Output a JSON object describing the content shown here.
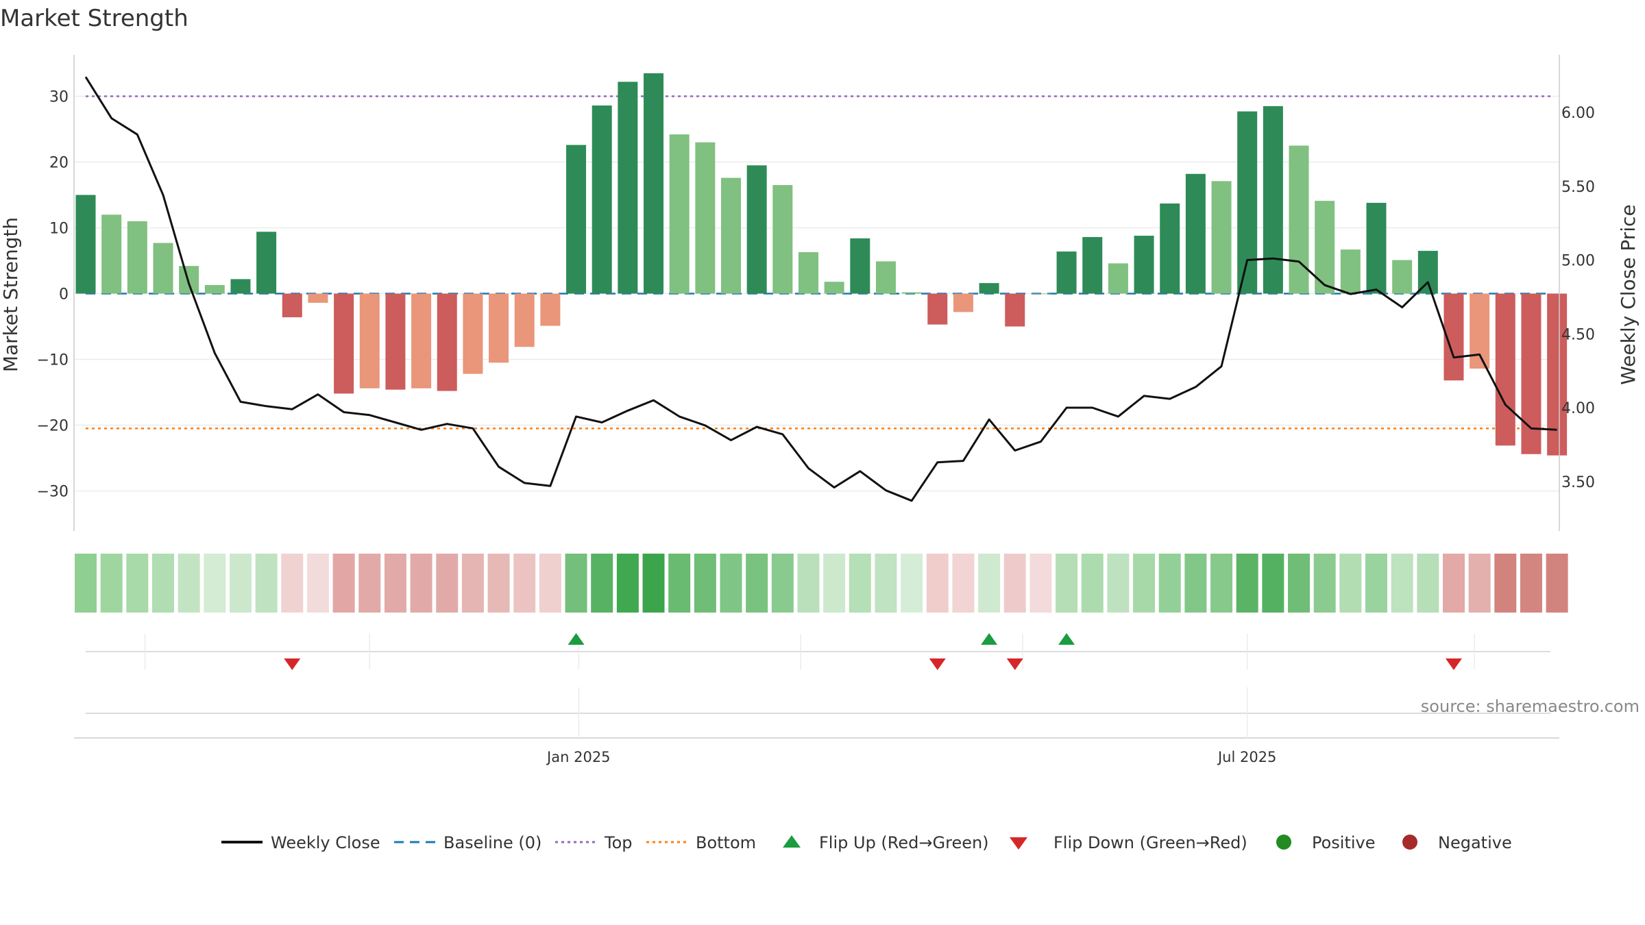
{
  "chart_data": {
    "type": "bar",
    "title": "Market Strength",
    "ylabel_left": "Market Strength",
    "ylabel_right": "Weekly Close Price",
    "ylim_left": [
      -36,
      36
    ],
    "ylim_right": [
      3.2,
      6.3
    ],
    "yticks_left": [
      30,
      20,
      10,
      0,
      -10,
      -20,
      -30
    ],
    "yticks_left_labels": [
      "30",
      "20",
      "10",
      "0",
      "−10",
      "−20",
      "−30"
    ],
    "yticks_right": [
      6.0,
      5.5,
      5.0,
      4.5,
      4.0,
      3.5
    ],
    "yticks_right_labels": [
      "6.00",
      "5.50",
      "5.00",
      "4.50",
      "4.00",
      "3.50"
    ],
    "top_line": 30,
    "bottom_line": -20.5,
    "x_ticks": [
      {
        "index": 19.1,
        "label": "Jan 2025"
      },
      {
        "index": 45.0,
        "label": "Jul 2025"
      }
    ],
    "strength": [
      15,
      12,
      11,
      7.7,
      4.2,
      1.3,
      2.2,
      9.4,
      -3.6,
      -1.4,
      -15.2,
      -14.4,
      -14.6,
      -14.4,
      -14.8,
      -12.2,
      -10.5,
      -8.1,
      -4.9,
      22.6,
      28.6,
      32.2,
      33.5,
      24.2,
      23,
      17.6,
      19.5,
      16.5,
      6.3,
      1.8,
      8.4,
      4.9,
      0.2,
      -4.7,
      -2.8,
      1.6,
      -5,
      0,
      6.4,
      8.6,
      4.6,
      8.8,
      13.7,
      18.2,
      17.1,
      27.7,
      28.5,
      22.5,
      14.1,
      6.7,
      13.8,
      5.1,
      6.5,
      -13.2,
      -11.4,
      -23.1,
      -24.4,
      -24.6
    ],
    "bar_style": [
      "strong",
      "weak",
      "weak",
      "weak",
      "weak",
      "weak",
      "strong",
      "strong",
      "strong",
      "weak",
      "strong",
      "weak",
      "strong",
      "weak",
      "strong",
      "weak",
      "weak",
      "weak",
      "weak",
      "strong",
      "strong",
      "strong",
      "strong",
      "weak",
      "weak",
      "weak",
      "strong",
      "weak",
      "weak",
      "weak",
      "strong",
      "weak",
      "weak",
      "strong",
      "weak",
      "strong",
      "strong",
      "weak",
      "strong",
      "strong",
      "weak",
      "strong",
      "strong",
      "strong",
      "weak",
      "strong",
      "strong",
      "weak",
      "weak",
      "weak",
      "strong",
      "weak",
      "strong",
      "strong",
      "weak",
      "strong",
      "strong",
      "strong"
    ],
    "weekly_close": [
      6.24,
      5.96,
      5.85,
      5.44,
      4.84,
      4.37,
      4.04,
      4.01,
      3.99,
      4.09,
      3.97,
      3.95,
      3.9,
      3.85,
      3.89,
      3.86,
      3.6,
      3.49,
      3.47,
      3.94,
      3.9,
      3.98,
      4.05,
      3.94,
      3.88,
      3.78,
      3.87,
      3.82,
      3.59,
      3.46,
      3.57,
      3.44,
      3.37,
      3.63,
      3.64,
      3.92,
      3.71,
      3.77,
      4.0,
      4.0,
      3.94,
      4.08,
      4.06,
      4.14,
      4.28,
      5.0,
      5.01,
      4.99,
      4.83,
      4.77,
      4.8,
      4.68,
      4.85,
      4.34,
      4.36,
      4.02,
      3.86,
      3.85
    ],
    "heat_colors": [
      "#90cf92",
      "#9fd6a0",
      "#a8d9a9",
      "#b0ddb1",
      "#c3e4c3",
      "#d3ecd3",
      "#cbe8cc",
      "#bfe2c0",
      "#f0d3d1",
      "#f1dcdb",
      "#e2a7a5",
      "#e1aaa8",
      "#e1aaa8",
      "#e1aaa8",
      "#e1aaa8",
      "#e4b5b3",
      "#e6b9b7",
      "#ebc4c2",
      "#efd0ce",
      "#73bf7b",
      "#58b263",
      "#40a84f",
      "#3ca54c",
      "#68bb71",
      "#6fbd76",
      "#7fc585",
      "#79c27f",
      "#89cb8e",
      "#b9e0ba",
      "#cce9cd",
      "#b5dfb6",
      "#c0e3c1",
      "#d5edd6",
      "#f0cdcb",
      "#f1d4d3",
      "#cee9cf",
      "#eecbca",
      "#f2dbda",
      "#b5deb6",
      "#acdbad",
      "#bee2bf",
      "#a7d9a8",
      "#93d097",
      "#82c788",
      "#86c98b",
      "#5bb466",
      "#55b162",
      "#70bd78",
      "#8bcb8f",
      "#b2ddb3",
      "#99d39d",
      "#bde2be",
      "#b6dfb7",
      "#e2a9a7",
      "#e3b0ae",
      "#d3837e",
      "#d38580",
      "#d3837e"
    ],
    "flip_up": [
      19,
      35,
      38
    ],
    "flip_down": [
      8,
      33,
      36,
      53
    ],
    "flip_row_gridlines": [
      2.3,
      11.0,
      19.1,
      27.7,
      36.3,
      45.0,
      53.8
    ],
    "legend": [
      "Weekly Close",
      "Baseline (0)",
      "Top",
      "Bottom",
      "Flip Up (Red→Green)",
      "Flip Down (Green→Red)",
      "Positive",
      "Negative"
    ],
    "source": "source: sharemaestro.com"
  },
  "colors": {
    "pos_strong": "#2e8b57",
    "pos_weak": "#80c080",
    "neg_strong": "#cd5c5c",
    "neg_weak": "#e9967a",
    "close_line": "#111111",
    "baseline": "#1f77b4",
    "top": "#9467bd",
    "bottom": "#ff7f0e",
    "flip_up": "#1a9c3f",
    "flip_down": "#d62728",
    "positive_dot": "#228b22",
    "negative_dot": "#a52a2a"
  }
}
